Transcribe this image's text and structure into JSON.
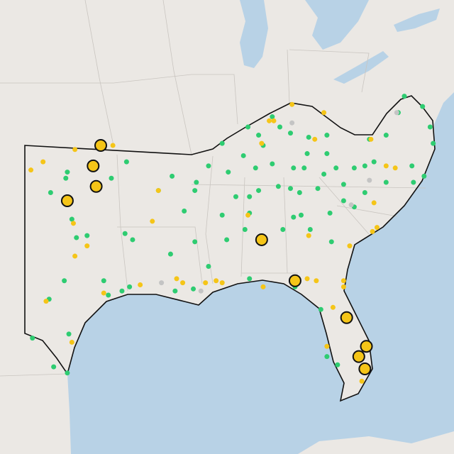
{
  "markers": [
    {
      "color": "#2ecc71",
      "large": false,
      "points": [
        [
          -102.5,
          27.6
        ],
        [
          -101.1,
          26.2
        ],
        [
          -100.2,
          25.9
        ],
        [
          -100.1,
          27.8
        ],
        [
          -101.4,
          29.5
        ],
        [
          -100.4,
          30.4
        ],
        [
          -99.6,
          32.5
        ],
        [
          -98.9,
          32.6
        ],
        [
          -99.9,
          33.4
        ],
        [
          -101.3,
          34.7
        ],
        [
          -100.2,
          35.7
        ],
        [
          -100.3,
          35.4
        ],
        [
          -97.3,
          35.4
        ],
        [
          -96.3,
          36.2
        ],
        [
          -96.4,
          32.7
        ],
        [
          -95.9,
          32.4
        ],
        [
          -97.8,
          30.4
        ],
        [
          -97.5,
          29.7
        ],
        [
          -96.6,
          29.9
        ],
        [
          -96.1,
          30.1
        ],
        [
          -94.2,
          34.8
        ],
        [
          -93.3,
          35.5
        ],
        [
          -92.5,
          33.8
        ],
        [
          -91.7,
          35.2
        ],
        [
          -91.8,
          34.8
        ],
        [
          -90.9,
          36.0
        ],
        [
          -90.0,
          37.1
        ],
        [
          -91.8,
          32.3
        ],
        [
          -90.9,
          31.1
        ],
        [
          -93.4,
          31.7
        ],
        [
          -93.1,
          29.9
        ],
        [
          -91.9,
          30.0
        ],
        [
          -89.7,
          32.4
        ],
        [
          -90.0,
          33.6
        ],
        [
          -89.1,
          34.5
        ],
        [
          -89.6,
          35.7
        ],
        [
          -88.6,
          36.5
        ],
        [
          -88.3,
          37.9
        ],
        [
          -87.6,
          37.5
        ],
        [
          -86.7,
          38.4
        ],
        [
          -87.3,
          37.0
        ],
        [
          -88.2,
          34.5
        ],
        [
          -87.6,
          34.8
        ],
        [
          -86.3,
          35.0
        ],
        [
          -87.8,
          35.9
        ],
        [
          -86.7,
          36.1
        ],
        [
          -85.3,
          35.9
        ],
        [
          -84.6,
          35.9
        ],
        [
          -85.5,
          34.9
        ],
        [
          -83.7,
          34.9
        ],
        [
          -83.3,
          35.6
        ],
        [
          -82.5,
          35.9
        ],
        [
          -81.3,
          35.9
        ],
        [
          -80.6,
          36.0
        ],
        [
          -80.0,
          36.2
        ],
        [
          -82.0,
          35.1
        ],
        [
          -80.6,
          34.7
        ],
        [
          -79.2,
          35.2
        ],
        [
          -77.5,
          36.0
        ],
        [
          -76.7,
          35.5
        ],
        [
          -77.4,
          35.2
        ],
        [
          -79.2,
          37.5
        ],
        [
          -80.3,
          37.3
        ],
        [
          -78.4,
          38.6
        ],
        [
          -78.0,
          39.4
        ],
        [
          -76.8,
          38.9
        ],
        [
          -76.3,
          37.9
        ],
        [
          -76.1,
          37.1
        ],
        [
          -83.1,
          37.5
        ],
        [
          -84.3,
          37.4
        ],
        [
          -85.5,
          37.6
        ],
        [
          -86.2,
          37.9
        ],
        [
          -83.1,
          36.6
        ],
        [
          -84.4,
          36.6
        ],
        [
          -86.0,
          32.9
        ],
        [
          -85.3,
          33.5
        ],
        [
          -84.8,
          33.6
        ],
        [
          -84.2,
          32.9
        ],
        [
          -82.9,
          33.7
        ],
        [
          -82.8,
          32.3
        ],
        [
          -81.3,
          34.0
        ],
        [
          -88.2,
          33.7
        ],
        [
          -88.5,
          32.9
        ],
        [
          -88.2,
          30.5
        ],
        [
          -85.2,
          30.1
        ],
        [
          -83.5,
          29.0
        ],
        [
          -83.1,
          26.7
        ],
        [
          -82.4,
          26.3
        ],
        [
          -84.9,
          34.7
        ],
        [
          -82.0,
          34.3
        ]
      ]
    },
    {
      "color": "#f5c518",
      "large": false,
      "points": [
        [
          -101.8,
          36.2
        ],
        [
          -99.7,
          36.8
        ],
        [
          -97.2,
          37.0
        ],
        [
          -102.6,
          35.8
        ],
        [
          -99.8,
          33.2
        ],
        [
          -98.9,
          32.1
        ],
        [
          -99.7,
          31.6
        ],
        [
          -101.6,
          29.4
        ],
        [
          -99.9,
          27.4
        ],
        [
          -97.8,
          29.8
        ],
        [
          -95.4,
          30.2
        ],
        [
          -94.6,
          33.3
        ],
        [
          -94.2,
          34.8
        ],
        [
          -93.0,
          30.5
        ],
        [
          -92.6,
          30.3
        ],
        [
          -91.1,
          30.3
        ],
        [
          -90.4,
          30.4
        ],
        [
          -90.0,
          30.3
        ],
        [
          -88.3,
          33.6
        ],
        [
          -87.3,
          30.1
        ],
        [
          -84.4,
          30.5
        ],
        [
          -83.8,
          30.4
        ],
        [
          -83.1,
          27.2
        ],
        [
          -82.7,
          29.1
        ],
        [
          -82.0,
          30.4
        ],
        [
          -82.0,
          30.1
        ],
        [
          -80.8,
          25.5
        ],
        [
          -81.6,
          32.1
        ],
        [
          -84.3,
          32.6
        ],
        [
          -80.1,
          32.8
        ],
        [
          -79.8,
          33.0
        ],
        [
          -80.0,
          34.2
        ],
        [
          -78.6,
          35.9
        ],
        [
          -79.2,
          36.0
        ],
        [
          -86.9,
          38.2
        ],
        [
          -86.6,
          38.2
        ],
        [
          -85.4,
          39.0
        ],
        [
          -83.3,
          38.6
        ],
        [
          -83.9,
          37.3
        ],
        [
          -80.2,
          37.3
        ],
        [
          -87.4,
          37.1
        ]
      ]
    },
    {
      "color": "#c4c4c4",
      "large": false,
      "points": [
        [
          -85.4,
          38.1
        ],
        [
          -78.5,
          38.6
        ],
        [
          -80.3,
          35.3
        ],
        [
          -81.5,
          34.1
        ],
        [
          -94.0,
          30.3
        ],
        [
          -91.4,
          29.9
        ]
      ]
    },
    {
      "color": "#f5c518",
      "large": true,
      "points": [
        [
          -98.0,
          37.0
        ],
        [
          -98.5,
          36.0
        ],
        [
          -98.3,
          35.0
        ],
        [
          -100.2,
          34.3
        ],
        [
          -87.4,
          32.4
        ],
        [
          -85.2,
          30.4
        ],
        [
          -81.8,
          28.6
        ],
        [
          -80.5,
          27.2
        ],
        [
          -81.0,
          26.7
        ],
        [
          -80.6,
          26.1
        ]
      ]
    }
  ]
}
